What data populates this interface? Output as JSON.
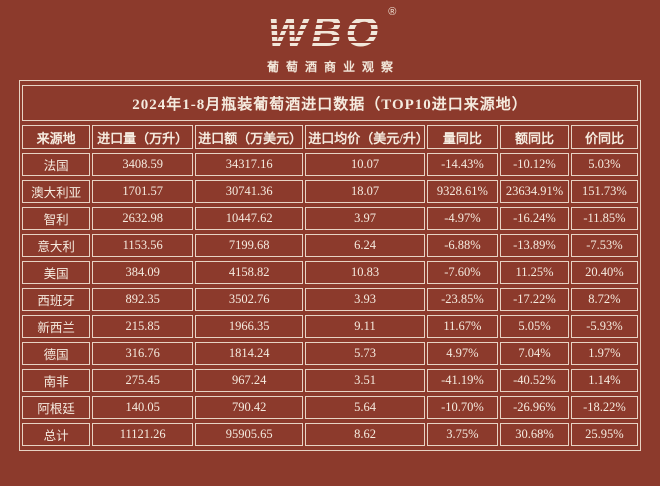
{
  "logo": {
    "brand": "WBO",
    "registered_mark": "®",
    "subtitle": "葡萄酒商业观察"
  },
  "chart_data": {
    "type": "table",
    "title": "2024年1-8月瓶装葡萄酒进口数据（TOP10进口来源地）",
    "columns": [
      "来源地",
      "进口量（万升）",
      "进口额（万美元）",
      "进口均价（美元/升）",
      "量同比",
      "额同比",
      "价同比"
    ],
    "rows": [
      [
        "法国",
        "3408.59",
        "34317.16",
        "10.07",
        "-14.43%",
        "-10.12%",
        "5.03%"
      ],
      [
        "澳大利亚",
        "1701.57",
        "30741.36",
        "18.07",
        "9328.61%",
        "23634.91%",
        "151.73%"
      ],
      [
        "智利",
        "2632.98",
        "10447.62",
        "3.97",
        "-4.97%",
        "-16.24%",
        "-11.85%"
      ],
      [
        "意大利",
        "1153.56",
        "7199.68",
        "6.24",
        "-6.88%",
        "-13.89%",
        "-7.53%"
      ],
      [
        "美国",
        "384.09",
        "4158.82",
        "10.83",
        "-7.60%",
        "11.25%",
        "20.40%"
      ],
      [
        "西班牙",
        "892.35",
        "3502.76",
        "3.93",
        "-23.85%",
        "-17.22%",
        "8.72%"
      ],
      [
        "新西兰",
        "215.85",
        "1966.35",
        "9.11",
        "11.67%",
        "5.05%",
        "-5.93%"
      ],
      [
        "德国",
        "316.76",
        "1814.24",
        "5.73",
        "4.97%",
        "7.04%",
        "1.97%"
      ],
      [
        "南非",
        "275.45",
        "967.24",
        "3.51",
        "-41.19%",
        "-40.52%",
        "1.14%"
      ],
      [
        "阿根廷",
        "140.05",
        "790.42",
        "5.64",
        "-10.70%",
        "-26.96%",
        "-18.22%"
      ],
      [
        "总计",
        "11121.26",
        "95905.65",
        "8.62",
        "3.75%",
        "30.68%",
        "25.95%"
      ]
    ]
  },
  "colors": {
    "background": "#8c3a2c",
    "cell_border": "#e8d3c4",
    "text": "#f5ebdf"
  }
}
